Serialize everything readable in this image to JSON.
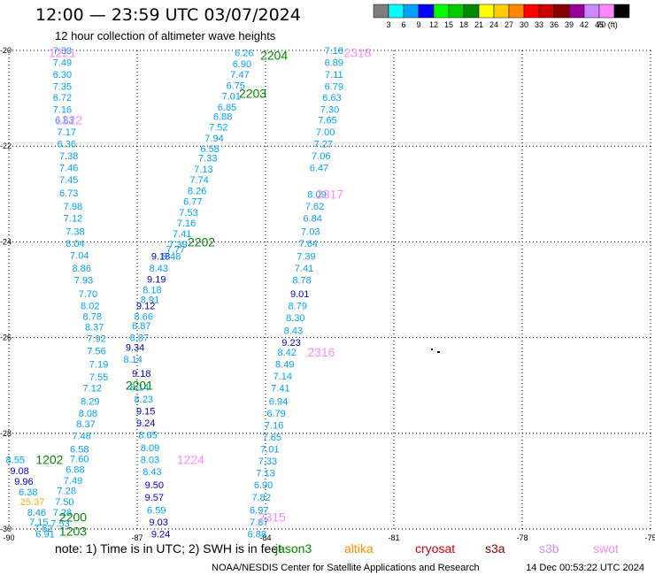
{
  "header": {
    "title": "12:00 — 23:59 UTC 03/07/2024",
    "subtitle": "12 hour collection of altimeter wave heights"
  },
  "colorbar": {
    "colors": [
      "#7f7f7f",
      "#00ffff",
      "#00a0ff",
      "#0000ff",
      "#00ff00",
      "#00cc00",
      "#008800",
      "#ffff00",
      "#ffcc00",
      "#ff8800",
      "#ff0000",
      "#cc0000",
      "#880000",
      "#990099",
      "#cc88ff",
      "#ff88ff",
      "#000000"
    ],
    "labels": [
      "3",
      "6",
      "9",
      "12",
      "15",
      "18",
      "21",
      "24",
      "27",
      "30",
      "33",
      "36",
      "39",
      "42",
      "45",
      "70 (ft)"
    ]
  },
  "footer": {
    "note": "note: 1) Time is in UTC; 2) SWH is in feet",
    "credit": "NOAA/NESDIS Center for Satellite Applications and Research",
    "timestamp": "14 Dec 00:53:22 UTC 2024"
  },
  "legend": [
    {
      "name": "jason3",
      "color": "#008800"
    },
    {
      "name": "altika",
      "color": "#ff8800"
    },
    {
      "name": "cryosat",
      "color": "#cc0000"
    },
    {
      "name": "s3a",
      "color": "#880000"
    },
    {
      "name": "s3b",
      "color": "#cc88ff"
    },
    {
      "name": "swot",
      "color": "#ff88ff"
    }
  ],
  "chart_data": {
    "type": "scatter",
    "title": "12:00 — 23:59 UTC 03/07/2024",
    "subtitle": "12 hour collection of altimeter wave heights",
    "xlim": [
      -90,
      -75
    ],
    "ylim": [
      -30,
      -20
    ],
    "xticks": [
      "-90",
      "-87",
      "-84",
      "-81",
      "-78",
      "-75"
    ],
    "yticks": [
      "-20",
      "-22",
      "-24",
      "-26",
      "-28",
      "-30"
    ],
    "grid": true,
    "units": "ft",
    "pass_labels": [
      {
        "text": "1221",
        "x": -88.75,
        "y": -20.05,
        "color": "#ff88ff"
      },
      {
        "text": "1222",
        "x": -88.6,
        "y": -21.45,
        "color": "#ff88ff"
      },
      {
        "text": "2204",
        "x": -83.8,
        "y": -20.1,
        "color": "#008800"
      },
      {
        "text": "2203",
        "x": -84.3,
        "y": -20.9,
        "color": "#008800"
      },
      {
        "text": "2318",
        "x": -81.85,
        "y": -20.05,
        "color": "#ff88ff"
      },
      {
        "text": "2317",
        "x": -82.5,
        "y": -23.0,
        "color": "#ff88ff"
      },
      {
        "text": "2202",
        "x": -85.5,
        "y": -24.0,
        "color": "#008800"
      },
      {
        "text": "2316",
        "x": -82.7,
        "y": -26.3,
        "color": "#ff88ff"
      },
      {
        "text": "2201",
        "x": -86.95,
        "y": -27.0,
        "color": "#008800"
      },
      {
        "text": "1202",
        "x": -89.05,
        "y": -28.55,
        "color": "#008800"
      },
      {
        "text": "1224",
        "x": -85.75,
        "y": -28.55,
        "color": "#ff88ff"
      },
      {
        "text": "2200",
        "x": -88.5,
        "y": -29.75,
        "color": "#008800"
      },
      {
        "text": "1203",
        "x": -88.5,
        "y": -30.05,
        "color": "#008800"
      },
      {
        "text": "2315",
        "x": -83.85,
        "y": -29.75,
        "color": "#ff88ff"
      }
    ],
    "series": [
      {
        "name": "1221",
        "color": "#00a0ff",
        "points": [
          {
            "x": -88.75,
            "y": -20.0,
            "v": "7.33"
          },
          {
            "x": -88.75,
            "y": -20.25,
            "v": "7.49"
          },
          {
            "x": -88.75,
            "y": -20.5,
            "v": "6.30"
          },
          {
            "x": -88.75,
            "y": -20.75,
            "v": "7.35"
          },
          {
            "x": -88.75,
            "y": -20.98,
            "v": "6.72"
          },
          {
            "x": -88.75,
            "y": -21.23,
            "v": "7.16"
          },
          {
            "x": -88.7,
            "y": -21.45,
            "v": "6.83"
          },
          {
            "x": -88.65,
            "y": -21.7,
            "v": "7.17"
          },
          {
            "x": -88.65,
            "y": -21.95,
            "v": "6.36"
          },
          {
            "x": -88.6,
            "y": -22.2,
            "v": "7.38"
          },
          {
            "x": -88.6,
            "y": -22.45,
            "v": "7.46"
          },
          {
            "x": -88.6,
            "y": -22.7,
            "v": "7.45"
          },
          {
            "x": -88.6,
            "y": -22.98,
            "v": "6.73"
          },
          {
            "x": -88.5,
            "y": -23.25,
            "v": "7.98"
          },
          {
            "x": -88.5,
            "y": -23.5,
            "v": "7.12"
          },
          {
            "x": -88.45,
            "y": -23.78,
            "v": "7.38"
          },
          {
            "x": -88.45,
            "y": -24.03,
            "v": "8.04"
          },
          {
            "x": -88.35,
            "y": -24.28,
            "v": "7.04"
          },
          {
            "x": -88.3,
            "y": -24.55,
            "v": "8.86"
          },
          {
            "x": -88.25,
            "y": -24.8,
            "v": "7.93"
          },
          {
            "x": -88.15,
            "y": -25.08,
            "v": "7.70"
          },
          {
            "x": -88.1,
            "y": -25.33,
            "v": "8.02"
          },
          {
            "x": -88.05,
            "y": -25.55,
            "v": "8.78"
          },
          {
            "x": -88.0,
            "y": -25.78,
            "v": "8.37"
          },
          {
            "x": -87.95,
            "y": -26.02,
            "v": "7.92"
          },
          {
            "x": -87.95,
            "y": -26.28,
            "v": "7.56"
          },
          {
            "x": -87.9,
            "y": -26.55,
            "v": "7.19"
          },
          {
            "x": -87.9,
            "y": -26.82,
            "v": "7.55"
          },
          {
            "x": -88.05,
            "y": -27.05,
            "v": "7.12"
          },
          {
            "x": -88.1,
            "y": -27.33,
            "v": "8.29"
          },
          {
            "x": -88.15,
            "y": -27.58,
            "v": "8.08"
          },
          {
            "x": -88.2,
            "y": -27.8,
            "v": "8.37"
          },
          {
            "x": -88.3,
            "y": -28.05,
            "v": "7.48"
          },
          {
            "x": -88.35,
            "y": -28.33,
            "v": "6.58"
          },
          {
            "x": -88.35,
            "y": -28.53,
            "v": "7.60"
          },
          {
            "x": -88.45,
            "y": -28.75,
            "v": "6.88"
          },
          {
            "x": -88.5,
            "y": -28.98,
            "v": "7.49"
          },
          {
            "x": -88.65,
            "y": -29.2,
            "v": "7.28"
          },
          {
            "x": -88.7,
            "y": -29.43,
            "v": "7.50"
          },
          {
            "x": -88.75,
            "y": -29.65,
            "v": "7.28"
          },
          {
            "x": -88.8,
            "y": -29.88,
            "v": "7.53"
          }
        ]
      },
      {
        "name": "1224",
        "color": "#00a0ff",
        "points": [
          {
            "x": -86.45,
            "y": -24.3,
            "v": "9.18"
          },
          {
            "x": -86.5,
            "y": -24.55,
            "v": "8.43"
          },
          {
            "x": -86.55,
            "y": -24.78,
            "v": "9.19"
          },
          {
            "x": -86.65,
            "y": -25.0,
            "v": "8.18"
          },
          {
            "x": -86.7,
            "y": -25.2,
            "v": "8.91"
          },
          {
            "x": -86.8,
            "y": -25.33,
            "v": "9.12"
          },
          {
            "x": -86.85,
            "y": -25.55,
            "v": "8.66"
          },
          {
            "x": -86.9,
            "y": -25.75,
            "v": "8.87"
          },
          {
            "x": -86.95,
            "y": -26.0,
            "v": "8.87"
          },
          {
            "x": -87.05,
            "y": -26.2,
            "v": "9.34"
          },
          {
            "x": -87.1,
            "y": -26.45,
            "v": "8.14"
          },
          {
            "x": -86.9,
            "y": -26.75,
            "v": "9.18"
          },
          {
            "x": -86.95,
            "y": -27.03,
            "v": "8.14"
          },
          {
            "x": -86.85,
            "y": -27.28,
            "v": "8.23"
          },
          {
            "x": -86.8,
            "y": -27.53,
            "v": "9.15"
          },
          {
            "x": -86.8,
            "y": -27.78,
            "v": "9.24"
          },
          {
            "x": -86.75,
            "y": -28.03,
            "v": "8.65"
          },
          {
            "x": -86.7,
            "y": -28.3,
            "v": "8.09"
          },
          {
            "x": -86.7,
            "y": -28.55,
            "v": "8.03"
          },
          {
            "x": -86.65,
            "y": -28.8,
            "v": "8.43"
          },
          {
            "x": -86.6,
            "y": -29.08,
            "v": "9.50"
          },
          {
            "x": -86.6,
            "y": -29.33,
            "v": "9.57"
          },
          {
            "x": -86.55,
            "y": -29.6,
            "v": "6.59"
          },
          {
            "x": -86.5,
            "y": -29.85,
            "v": "9.03"
          },
          {
            "x": -86.45,
            "y": -30.1,
            "v": "9.24"
          }
        ]
      },
      {
        "name": "2204",
        "color": "#00a0ff",
        "points": [
          {
            "x": -84.5,
            "y": -20.05,
            "v": "6.26"
          },
          {
            "x": -84.55,
            "y": -20.28,
            "v": "6.90"
          },
          {
            "x": -84.6,
            "y": -20.5,
            "v": "7.47"
          },
          {
            "x": -84.7,
            "y": -20.73,
            "v": "6.75"
          },
          {
            "x": -84.8,
            "y": -20.95,
            "v": "7.01"
          },
          {
            "x": -84.9,
            "y": -21.18,
            "v": "6.85"
          },
          {
            "x": -85.0,
            "y": -21.38,
            "v": "6.88"
          },
          {
            "x": -85.1,
            "y": -21.6,
            "v": "7.52"
          },
          {
            "x": -85.2,
            "y": -21.83,
            "v": "7.94"
          },
          {
            "x": -85.3,
            "y": -22.05,
            "v": "6.58"
          },
          {
            "x": -85.35,
            "y": -22.25,
            "v": "7.33"
          },
          {
            "x": -85.45,
            "y": -22.48,
            "v": "7.13"
          },
          {
            "x": -85.55,
            "y": -22.7,
            "v": "7.74"
          },
          {
            "x": -85.6,
            "y": -22.93,
            "v": "8.26"
          },
          {
            "x": -85.7,
            "y": -23.15,
            "v": "6.77"
          },
          {
            "x": -85.8,
            "y": -23.38,
            "v": "7.53"
          },
          {
            "x": -85.85,
            "y": -23.6,
            "v": "7.16"
          },
          {
            "x": -85.95,
            "y": -23.83,
            "v": "7.41"
          },
          {
            "x": -86.05,
            "y": -24.05,
            "v": "7.39"
          },
          {
            "x": -86.1,
            "y": -24.15,
            "v": "7.77"
          },
          {
            "x": -86.2,
            "y": -24.3,
            "v": "8.48"
          }
        ]
      },
      {
        "name": "2318",
        "color": "#00a0ff",
        "points": [
          {
            "x": -82.4,
            "y": -20.0,
            "v": "7.18"
          },
          {
            "x": -82.4,
            "y": -20.25,
            "v": "6.89"
          },
          {
            "x": -82.4,
            "y": -20.5,
            "v": "7.11"
          },
          {
            "x": -82.4,
            "y": -20.75,
            "v": "6.79"
          },
          {
            "x": -82.45,
            "y": -20.98,
            "v": "6.63"
          },
          {
            "x": -82.5,
            "y": -21.23,
            "v": "7.30"
          },
          {
            "x": -82.55,
            "y": -21.45,
            "v": "7.65"
          },
          {
            "x": -82.6,
            "y": -21.7,
            "v": "7.00"
          },
          {
            "x": -82.65,
            "y": -21.95,
            "v": "7.27"
          },
          {
            "x": -82.7,
            "y": -22.2,
            "v": "7.06"
          },
          {
            "x": -82.75,
            "y": -22.45,
            "v": "6.47"
          },
          {
            "x": -82.8,
            "y": -23.0,
            "v": "8.09"
          },
          {
            "x": -82.85,
            "y": -23.25,
            "v": "7.62"
          },
          {
            "x": -82.9,
            "y": -23.5,
            "v": "6.84"
          },
          {
            "x": -82.95,
            "y": -23.78,
            "v": "7.03"
          },
          {
            "x": -83.0,
            "y": -24.03,
            "v": "7.64"
          },
          {
            "x": -83.05,
            "y": -24.3,
            "v": "7.39"
          },
          {
            "x": -83.1,
            "y": -24.55,
            "v": "7.41"
          },
          {
            "x": -83.15,
            "y": -24.8,
            "v": "8.78"
          },
          {
            "x": -83.2,
            "y": -25.08,
            "v": "9.01"
          },
          {
            "x": -83.25,
            "y": -25.33,
            "v": "8.79"
          },
          {
            "x": -83.3,
            "y": -25.58,
            "v": "8.30"
          },
          {
            "x": -83.35,
            "y": -25.85,
            "v": "8.43"
          },
          {
            "x": -83.4,
            "y": -26.1,
            "v": "9.23"
          },
          {
            "x": -83.5,
            "y": -26.3,
            "v": "8.42"
          },
          {
            "x": -83.55,
            "y": -26.55,
            "v": "8.49"
          },
          {
            "x": -83.6,
            "y": -26.8,
            "v": "7.14"
          },
          {
            "x": -83.65,
            "y": -27.05,
            "v": "7.41"
          },
          {
            "x": -83.7,
            "y": -27.33,
            "v": "6.94"
          },
          {
            "x": -83.75,
            "y": -27.58,
            "v": "6.79"
          },
          {
            "x": -83.8,
            "y": -27.83,
            "v": "7.16"
          },
          {
            "x": -83.85,
            "y": -28.08,
            "v": "7.65"
          },
          {
            "x": -83.9,
            "y": -28.33,
            "v": "7.01"
          },
          {
            "x": -83.95,
            "y": -28.58,
            "v": "7.33"
          },
          {
            "x": -84.0,
            "y": -28.83,
            "v": "7.13"
          },
          {
            "x": -84.05,
            "y": -29.08,
            "v": "6.90"
          },
          {
            "x": -84.1,
            "y": -29.33,
            "v": "7.82"
          },
          {
            "x": -84.15,
            "y": -29.6,
            "v": "6.97"
          },
          {
            "x": -84.15,
            "y": -29.85,
            "v": "7.87"
          },
          {
            "x": -84.2,
            "y": -30.1,
            "v": "6.88"
          }
        ]
      },
      {
        "name": "1202",
        "color": "#00a0ff",
        "points": [
          {
            "x": -89.85,
            "y": -28.55,
            "v": "8.55"
          },
          {
            "x": -89.75,
            "y": -28.78,
            "v": "9.08"
          },
          {
            "x": -89.65,
            "y": -29.0,
            "v": "9.96"
          },
          {
            "x": -89.55,
            "y": -29.22,
            "v": "6.38"
          },
          {
            "x": -89.45,
            "y": -29.43,
            "v": "25.37"
          },
          {
            "x": -89.35,
            "y": -29.65,
            "v": "8.46"
          },
          {
            "x": -89.3,
            "y": -29.85,
            "v": "7.15"
          },
          {
            "x": -89.2,
            "y": -29.98,
            "v": "7.62"
          },
          {
            "x": -89.15,
            "y": -30.1,
            "v": "6.91"
          }
        ]
      }
    ]
  }
}
